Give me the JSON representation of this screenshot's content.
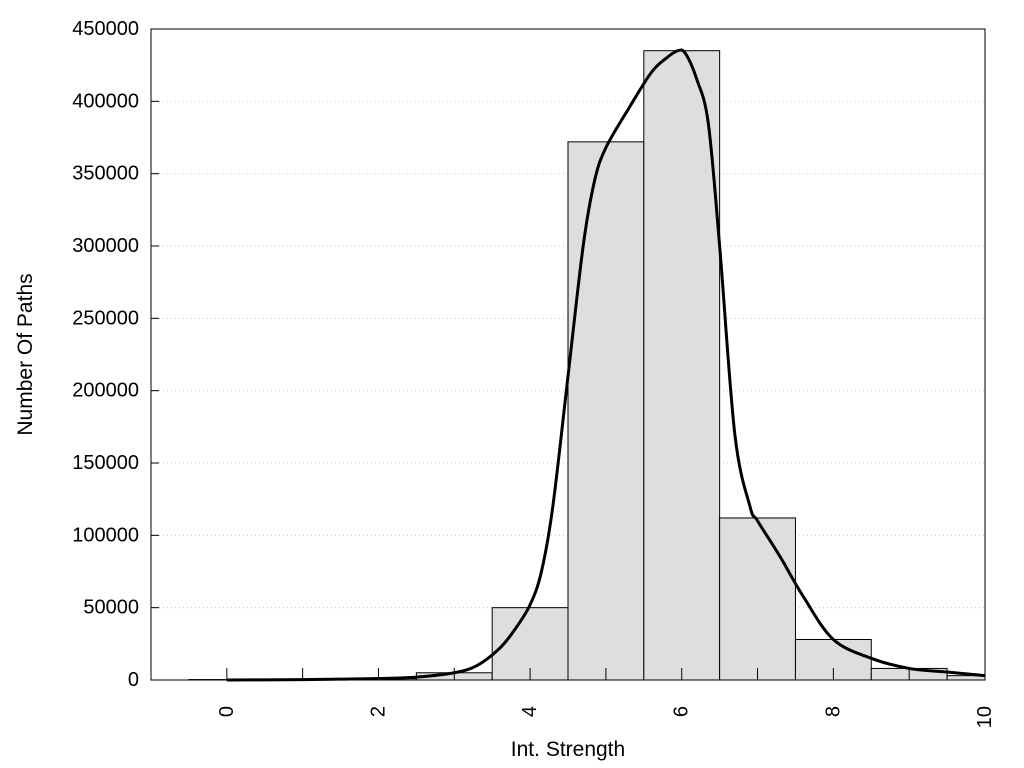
{
  "chart_data": {
    "type": "bar",
    "xlabel": "Int. Strength",
    "ylabel": "Number Of Paths",
    "xlim": [
      -1,
      10
    ],
    "ylim": [
      0,
      450000
    ],
    "x_ticks": [
      0,
      2,
      4,
      6,
      8,
      10
    ],
    "x_tick_labels": [
      "0",
      "2",
      "4",
      "6",
      "8",
      "10"
    ],
    "y_ticks": [
      0,
      50000,
      100000,
      150000,
      200000,
      250000,
      300000,
      350000,
      400000,
      450000
    ],
    "y_tick_labels": [
      "0",
      "50000",
      "100000",
      "150000",
      "200000",
      "250000",
      "300000",
      "350000",
      "400000",
      "450000"
    ],
    "grid": "horizontal dotted",
    "bin_width": 1,
    "bar_centers": [
      0,
      1,
      2,
      3,
      4,
      5,
      6,
      7,
      8,
      9,
      10
    ],
    "values": [
      300,
      500,
      900,
      5000,
      50000,
      372000,
      435000,
      112000,
      28000,
      8000,
      3000
    ],
    "fit_curve": {
      "x": [
        0,
        0.5,
        1,
        1.5,
        2,
        2.5,
        3,
        3.3,
        3.6,
        3.8,
        4.0,
        4.15,
        4.3,
        4.5,
        4.7,
        4.85,
        5.0,
        5.3,
        5.6,
        5.8,
        5.95,
        6.05,
        6.2,
        6.35,
        6.5,
        6.7,
        6.9,
        7.0,
        7.3,
        7.6,
        8.0,
        8.5,
        9.0,
        9.5,
        10.0
      ],
      "y": [
        0,
        100,
        300,
        600,
        1000,
        2000,
        5000,
        10000,
        22000,
        35000,
        52000,
        75000,
        120000,
        210000,
        300000,
        345000,
        368000,
        395000,
        420000,
        430000,
        435000,
        433000,
        415000,
        385000,
        300000,
        170000,
        120000,
        110000,
        85000,
        58000,
        28000,
        15000,
        8000,
        5500,
        3000
      ]
    },
    "colors": {
      "bar_fill": "#dedede",
      "bar_stroke": "#000000",
      "curve": "#000000",
      "grid": "#cccccc"
    }
  }
}
